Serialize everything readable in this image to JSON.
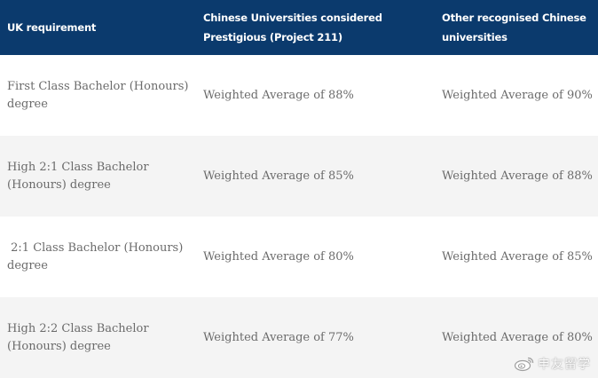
{
  "table": {
    "headers": [
      "UK requirement",
      "Chinese Universities considered Prestigious (Project 211)",
      "Other recognised Chinese universities"
    ],
    "rows": [
      [
        "First Class Bachelor (Honours) degree",
        "Weighted Average of 88%",
        "Weighted Average of 90%"
      ],
      [
        "High 2:1 Class Bachelor (Honours) degree",
        "Weighted Average of 85%",
        "Weighted Average of 88%"
      ],
      [
        " 2:1 Class Bachelor (Honours) degree",
        "Weighted Average of 80%",
        "Weighted Average of 85%"
      ],
      [
        "High 2:2 Class Bachelor (Honours) degree",
        "Weighted Average of 77%",
        "Weighted Average of 80%"
      ]
    ]
  },
  "watermark": {
    "icon": "weibo-icon",
    "text": "申友留学"
  },
  "colors": {
    "header_background": "#0b3a6d",
    "header_text": "#ffffff",
    "body_text": "#6b6b6b",
    "row_odd": "#ffffff",
    "row_even": "#f4f4f4"
  }
}
